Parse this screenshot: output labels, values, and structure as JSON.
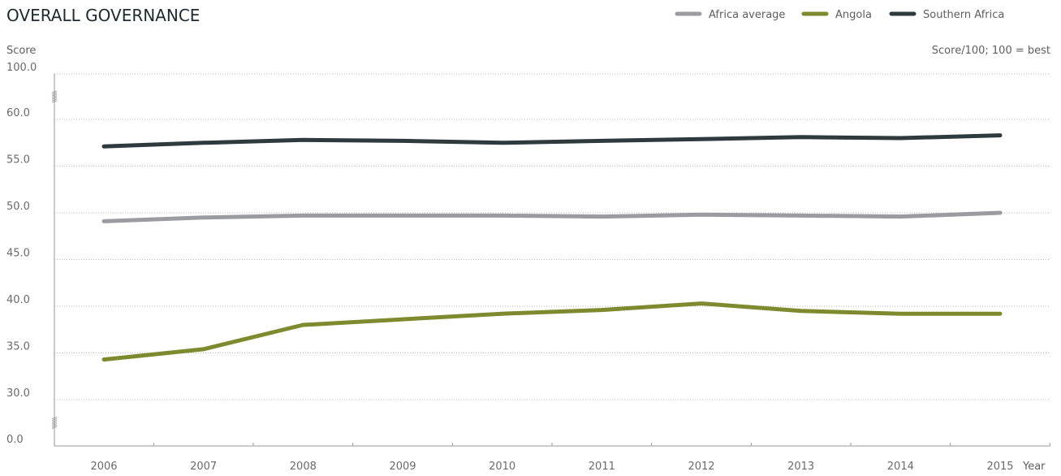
{
  "chart_data": {
    "type": "line",
    "title": "OVERALL GOVERNANCE",
    "ylabel": "Score",
    "xlabel": "Year",
    "unit_note": "Score/100; 100 = best",
    "x": [
      "2006",
      "2007",
      "2008",
      "2009",
      "2010",
      "2011",
      "2012",
      "2013",
      "2014",
      "2015"
    ],
    "y_ticks": [
      0.0,
      30.0,
      35.0,
      40.0,
      45.0,
      50.0,
      55.0,
      60.0,
      100.0
    ],
    "y_tick_labels": [
      "0.0",
      "30.0",
      "35.0",
      "40.0",
      "45.0",
      "50.0",
      "55.0",
      "60.0",
      "100.0"
    ],
    "axis_break": true,
    "grid": true,
    "legend_position": "top-right",
    "series": [
      {
        "name": "Africa average",
        "color": "#9b9c9f",
        "values": [
          49.1,
          49.5,
          49.7,
          49.7,
          49.7,
          49.6,
          49.8,
          49.7,
          49.6,
          50.0
        ]
      },
      {
        "name": "Angola",
        "color": "#7d8a2e",
        "values": [
          34.3,
          35.4,
          38.0,
          38.6,
          39.2,
          39.6,
          40.3,
          39.5,
          39.2,
          39.2
        ]
      },
      {
        "name": "Southern Africa",
        "color": "#2e3a3d",
        "values": [
          57.1,
          57.5,
          57.8,
          57.7,
          57.5,
          57.7,
          57.9,
          58.1,
          58.0,
          58.3
        ]
      }
    ]
  }
}
